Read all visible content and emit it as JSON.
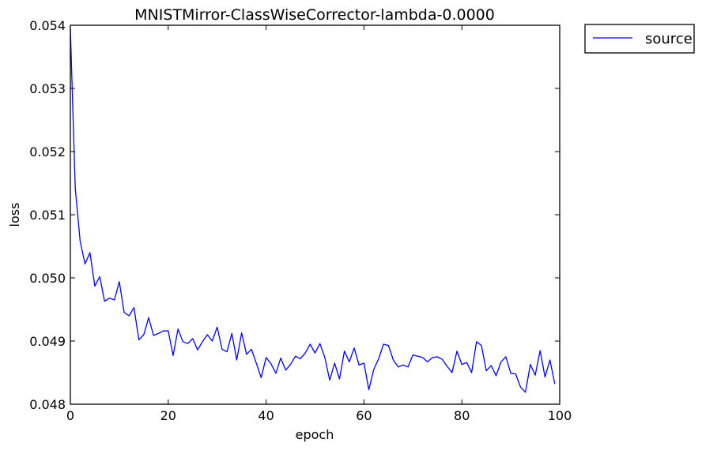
{
  "chart_data": {
    "type": "line",
    "title": "MNISTMirror-ClassWiseCorrector-lambda-0.0000",
    "xlabel": "epoch",
    "ylabel": "loss",
    "xlim": [
      0,
      100
    ],
    "ylim": [
      0.048,
      0.054
    ],
    "grid": false,
    "legend_position": "outside top-right",
    "x_ticks": [
      0,
      20,
      40,
      60,
      80,
      100
    ],
    "x_tick_labels": [
      "0",
      "20",
      "40",
      "60",
      "80",
      "100"
    ],
    "y_ticks": [
      0.048,
      0.049,
      0.05,
      0.051,
      0.052,
      0.053,
      0.054
    ],
    "y_tick_labels": [
      "0.048",
      "0.049",
      "0.050",
      "0.051",
      "0.052",
      "0.053",
      "0.054"
    ],
    "series": [
      {
        "name": "source",
        "color": "#0000ff",
        "x": [
          0,
          1,
          2,
          3,
          4,
          5,
          6,
          7,
          8,
          9,
          10,
          11,
          12,
          13,
          14,
          15,
          16,
          17,
          18,
          19,
          20,
          21,
          22,
          23,
          24,
          25,
          26,
          27,
          28,
          29,
          30,
          31,
          32,
          33,
          34,
          35,
          36,
          37,
          38,
          39,
          40,
          41,
          42,
          43,
          44,
          45,
          46,
          47,
          48,
          49,
          50,
          51,
          52,
          53,
          54,
          55,
          56,
          57,
          58,
          59,
          60,
          61,
          62,
          63,
          64,
          65,
          66,
          67,
          68,
          69,
          70,
          71,
          72,
          73,
          74,
          75,
          76,
          77,
          78,
          79,
          80,
          81,
          82,
          83,
          84,
          85,
          86,
          87,
          88,
          89,
          90,
          91,
          92,
          93,
          94,
          95,
          96,
          97,
          98,
          99
        ],
        "values": [
          0.05395,
          0.05142,
          0.05058,
          0.05022,
          0.0504,
          0.04987,
          0.05002,
          0.04963,
          0.04968,
          0.04965,
          0.04994,
          0.04945,
          0.0494,
          0.04953,
          0.04902,
          0.0491,
          0.04937,
          0.04909,
          0.04912,
          0.04916,
          0.04916,
          0.04877,
          0.04919,
          0.04899,
          0.04896,
          0.04904,
          0.04886,
          0.04899,
          0.0491,
          0.049,
          0.04922,
          0.04887,
          0.04883,
          0.04912,
          0.0487,
          0.04913,
          0.04879,
          0.04887,
          0.04865,
          0.04842,
          0.04874,
          0.04864,
          0.04849,
          0.04873,
          0.04854,
          0.04863,
          0.04876,
          0.04872,
          0.04881,
          0.04895,
          0.04881,
          0.04896,
          0.04874,
          0.04838,
          0.04865,
          0.0484,
          0.04884,
          0.04867,
          0.04889,
          0.04862,
          0.04865,
          0.04823,
          0.04855,
          0.04872,
          0.04895,
          0.04893,
          0.0487,
          0.04859,
          0.04862,
          0.04859,
          0.04878,
          0.04876,
          0.04874,
          0.04867,
          0.04874,
          0.04875,
          0.04871,
          0.0486,
          0.0485,
          0.04884,
          0.04863,
          0.04866,
          0.0485,
          0.04899,
          0.04893,
          0.04853,
          0.04861,
          0.04845,
          0.04867,
          0.04875,
          0.04849,
          0.04848,
          0.04827,
          0.04819,
          0.04863,
          0.04846,
          0.04885,
          0.04843,
          0.0487,
          0.04832
        ]
      }
    ]
  }
}
